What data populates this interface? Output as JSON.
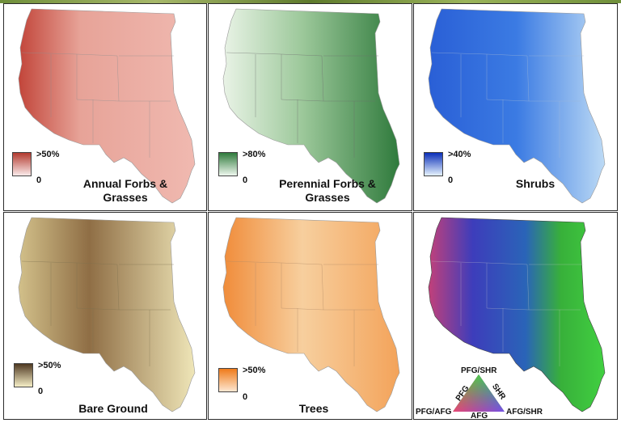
{
  "panels": [
    {
      "id": "afg",
      "title_line1": "Annual Forbs &",
      "title_line2": "Grasses",
      "legend_top": ">50%",
      "legend_bottom": "0",
      "color_low": "#fbeaea",
      "color_high": "#b23a2f",
      "base": "#e9a79b"
    },
    {
      "id": "pfg",
      "title_line1": "Perennial Forbs &",
      "title_line2": "Grasses",
      "legend_top": ">80%",
      "legend_bottom": "0",
      "color_low": "#eef7ee",
      "color_high": "#2f7a3c",
      "base": "#7fb47f"
    },
    {
      "id": "shr",
      "title_line1": "Shrubs",
      "title_line2": "",
      "legend_top": ">40%",
      "legend_bottom": "0",
      "color_low": "#e5f2fd",
      "color_high": "#0b2fb8",
      "base": "#5a8fe0"
    },
    {
      "id": "bare",
      "title_line1": "Bare Ground",
      "title_line2": "",
      "legend_top": ">50%",
      "legend_bottom": "0",
      "color_low": "#f5eec6",
      "color_high": "#4f3922",
      "base": "#d8c88e"
    },
    {
      "id": "trees",
      "title_line1": "Trees",
      "title_line2": "",
      "legend_top": ">50%",
      "legend_bottom": "0",
      "color_low": "#fde8d2",
      "color_high": "#ef7a1a",
      "base": "#f7c08a"
    },
    {
      "id": "rgb",
      "title_line1": "",
      "title_line2": "",
      "legend_top": "",
      "legend_bottom": "",
      "color_low": "#3a3aa0",
      "color_high": "#39d439",
      "base": "#6a4fb8"
    }
  ],
  "ternary": {
    "top": "PFG/SHR",
    "left_side": "PFG",
    "right_side": "SHR",
    "left_corner": "PFG/AFG",
    "bottom": "AFG",
    "right_corner": "AFG/SHR",
    "colors": {
      "green": "#22c522",
      "blue": "#1d2fe0",
      "red": "#e31c1c"
    }
  }
}
